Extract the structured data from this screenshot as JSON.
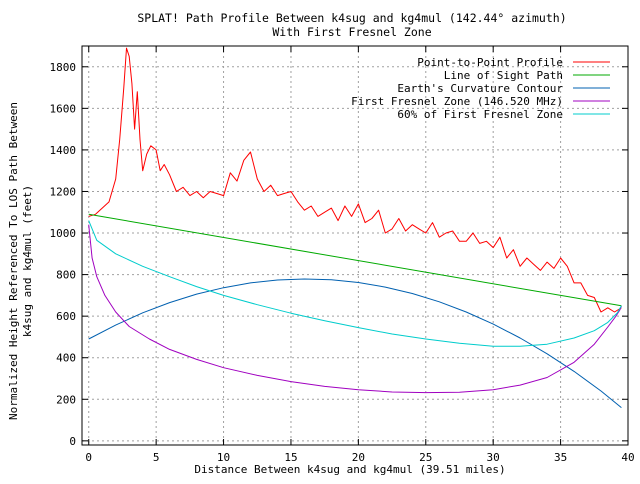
{
  "chart_data": {
    "type": "line",
    "title": "SPLAT! Path Profile Between k4sug and kg4mul (142.44° azimuth)",
    "subtitle": "With First Fresnel Zone",
    "xlabel": "Distance Between k4sug and kg4mul (39.51 miles)",
    "ylabel_line1": "Normalized Height Referenced To LOS Path Between",
    "ylabel_line2": "k4sug and kg4mul (feet)",
    "xlim": [
      -0.5,
      40
    ],
    "ylim": [
      -20,
      1900
    ],
    "x_ticks": [
      0,
      5,
      10,
      15,
      20,
      25,
      30,
      35,
      40
    ],
    "x_tick_labels": [
      "0",
      "5",
      "10",
      "15",
      "20",
      "25",
      "30",
      "35",
      "40"
    ],
    "y_ticks": [
      0,
      200,
      400,
      600,
      800,
      1000,
      1200,
      1400,
      1600,
      1800
    ],
    "y_tick_labels": [
      "0",
      "200",
      "400",
      "600",
      "800",
      "1000",
      "1200",
      "1400",
      "1600",
      "1800"
    ],
    "grid": true,
    "legend_position": "top-right",
    "series": [
      {
        "name": "Point-to-Point Profile",
        "color": "#ff0000",
        "x": [
          0,
          0.5,
          1,
          1.5,
          2,
          2.3,
          2.6,
          2.8,
          3.0,
          3.2,
          3.4,
          3.6,
          3.8,
          4.0,
          4.3,
          4.6,
          5.0,
          5.3,
          5.6,
          6.0,
          6.5,
          7.0,
          7.5,
          8.0,
          8.5,
          9.0,
          9.5,
          10.0,
          10.5,
          11.0,
          11.5,
          12.0,
          12.5,
          13.0,
          13.5,
          14.0,
          14.5,
          15.0,
          15.5,
          16.0,
          16.5,
          17.0,
          17.5,
          18.0,
          18.5,
          19.0,
          19.5,
          20.0,
          20.5,
          21.0,
          21.5,
          22.0,
          22.5,
          23.0,
          23.5,
          24.0,
          24.5,
          25.0,
          25.5,
          26.0,
          26.5,
          27.0,
          27.5,
          28.0,
          28.5,
          29.0,
          29.5,
          30.0,
          30.5,
          31.0,
          31.5,
          32.0,
          32.5,
          33.0,
          33.5,
          34.0,
          34.5,
          35.0,
          35.5,
          36.0,
          36.5,
          37.0,
          37.5,
          38.0,
          38.5,
          39.0,
          39.51
        ],
        "values": [
          1080,
          1090,
          1120,
          1150,
          1260,
          1450,
          1700,
          1890,
          1850,
          1720,
          1500,
          1680,
          1450,
          1300,
          1380,
          1420,
          1400,
          1300,
          1330,
          1280,
          1200,
          1220,
          1180,
          1200,
          1170,
          1200,
          1190,
          1180,
          1290,
          1250,
          1350,
          1390,
          1260,
          1200,
          1230,
          1180,
          1190,
          1200,
          1150,
          1110,
          1130,
          1080,
          1100,
          1120,
          1060,
          1130,
          1080,
          1140,
          1050,
          1070,
          1110,
          1000,
          1020,
          1070,
          1010,
          1040,
          1020,
          1000,
          1050,
          980,
          1000,
          1010,
          960,
          960,
          1000,
          950,
          960,
          930,
          980,
          880,
          920,
          840,
          880,
          850,
          820,
          860,
          830,
          880,
          840,
          760,
          760,
          700,
          690,
          620,
          640,
          620,
          640
        ]
      },
      {
        "name": "Line of Sight Path",
        "color": "#00aa00",
        "x": [
          0,
          39.51
        ],
        "values": [
          1090,
          650
        ]
      },
      {
        "name": "Earth's Curvature Contour",
        "color": "#0060b0",
        "x": [
          0,
          2,
          4,
          6,
          8,
          10,
          12,
          14,
          16,
          18,
          20,
          22,
          24,
          26,
          28,
          30,
          32,
          34,
          36,
          38,
          39.51
        ],
        "values": [
          490,
          557,
          616,
          665,
          706,
          737,
          760,
          774,
          779,
          775,
          762,
          740,
          709,
          669,
          620,
          562,
          495,
          419,
          334,
          240,
          160
        ]
      },
      {
        "name": "First Fresnel Zone (146.520 MHz)",
        "color": "#a000c0",
        "x": [
          0,
          0.25,
          0.6,
          1.2,
          2,
          3,
          4.5,
          6,
          8,
          10,
          12.5,
          15,
          17.5,
          20,
          22.5,
          25,
          27.5,
          30,
          32,
          34,
          36,
          37.5,
          38.5,
          39.1,
          39.4,
          39.51
        ],
        "values": [
          1040,
          880,
          790,
          700,
          620,
          550,
          490,
          440,
          392,
          352,
          315,
          285,
          262,
          246,
          235,
          232,
          234,
          246,
          268,
          305,
          378,
          465,
          548,
          600,
          630,
          650
        ]
      },
      {
        "name": "60% of First Fresnel Zone",
        "color": "#00cccc",
        "x": [
          0,
          0.6,
          2,
          4,
          6,
          8,
          10,
          12.5,
          15,
          17.5,
          20,
          22.5,
          25,
          27.5,
          30,
          32,
          34,
          36,
          37.5,
          38.5,
          39.2,
          39.51
        ],
        "values": [
          1060,
          965,
          900,
          840,
          790,
          742,
          700,
          655,
          614,
          578,
          545,
          514,
          490,
          470,
          455,
          455,
          465,
          495,
          530,
          570,
          615,
          650
        ]
      }
    ]
  }
}
